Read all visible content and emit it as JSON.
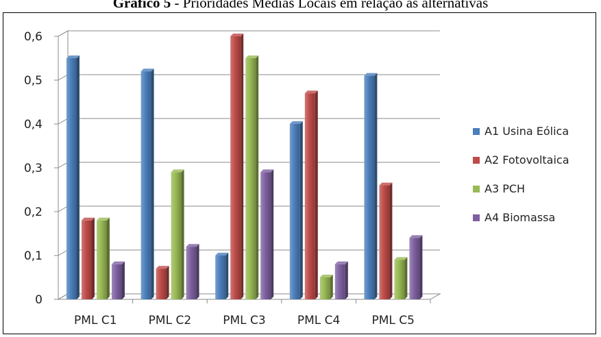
{
  "caption": {
    "prefix": "Gráfico 5",
    "rest": " - Prioridades Médias Locais em relação às alternativas"
  },
  "chart_data": {
    "type": "bar",
    "categories": [
      "PML C1",
      "PML C2",
      "PML C3",
      "PML C4",
      "PML C5"
    ],
    "series": [
      {
        "name": "A1 Usina Eólica",
        "color": "#4a7ebb",
        "values": [
          0.55,
          0.52,
          0.1,
          0.4,
          0.51
        ]
      },
      {
        "name": "A2 Fotovoltaica",
        "color": "#be4b48",
        "values": [
          0.18,
          0.07,
          0.6,
          0.47,
          0.26
        ]
      },
      {
        "name": "A3 PCH",
        "color": "#98b954",
        "values": [
          0.18,
          0.29,
          0.55,
          0.05,
          0.09
        ]
      },
      {
        "name": "A4 Biomassa",
        "color": "#7d60a0",
        "values": [
          0.08,
          0.12,
          0.29,
          0.08,
          0.14
        ]
      }
    ],
    "yticks": [
      "0",
      "0,1",
      "0,2",
      "0,3",
      "0,4",
      "0,5",
      "0,6"
    ],
    "ylim": [
      0,
      0.6
    ],
    "grid": true,
    "legend": "right",
    "title": "",
    "xlabel": "",
    "ylabel": ""
  }
}
